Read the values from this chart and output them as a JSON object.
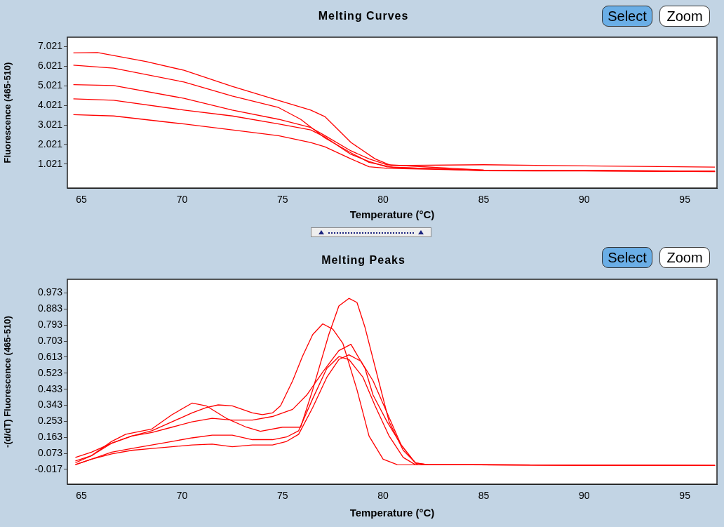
{
  "chart_data": [
    {
      "type": "line",
      "title": "Melting Curves",
      "xlabel": "Temperature (°C)",
      "ylabel": "Fluorescence (465-510)",
      "annotations": [
        "Select",
        "Zoom"
      ],
      "xlim": [
        64.3,
        96.6
      ],
      "ylim": [
        -0.2,
        7.5
      ],
      "xticks": [
        65,
        70,
        75,
        80,
        85,
        90,
        95
      ],
      "yticks": [
        1.021,
        2.021,
        3.021,
        4.021,
        5.021,
        6.021,
        7.021
      ],
      "series": [
        {
          "color": "#ff0000",
          "x": [
            64.6,
            65.8,
            68.2,
            70.1,
            72.5,
            74.8,
            76.4,
            77.1,
            78.4,
            79.6,
            80.4,
            85,
            90,
            96.5
          ],
          "values": [
            6.7,
            6.72,
            6.26,
            5.81,
            4.99,
            4.27,
            3.78,
            3.45,
            2.13,
            1.29,
            0.95,
            0.99,
            0.93,
            0.87
          ]
        },
        {
          "color": "#ff0000",
          "x": [
            64.6,
            66.6,
            70.1,
            72.5,
            74.8,
            75.9,
            77.1,
            78.4,
            79.3,
            80.5,
            85,
            90,
            96.5
          ],
          "values": [
            6.07,
            5.92,
            5.21,
            4.5,
            3.91,
            3.31,
            2.36,
            1.6,
            1.11,
            0.85,
            0.72,
            0.7,
            0.66
          ]
        },
        {
          "color": "#ff0000",
          "x": [
            64.6,
            66.6,
            70.1,
            72.5,
            74.8,
            76.4,
            77.1,
            78.4,
            79.3,
            80.2,
            85,
            90,
            96.5
          ],
          "values": [
            5.08,
            5.03,
            4.38,
            3.78,
            3.31,
            2.89,
            2.48,
            1.7,
            1.29,
            0.99,
            0.72,
            0.7,
            0.65
          ]
        },
        {
          "color": "#ff0000",
          "x": [
            64.6,
            66.6,
            70.1,
            72.5,
            74.8,
            76.4,
            77.1,
            78.4,
            79.3,
            80.2,
            85,
            90,
            96.5
          ],
          "values": [
            4.35,
            4.28,
            3.78,
            3.48,
            3.07,
            2.77,
            2.41,
            1.52,
            1.16,
            0.88,
            0.68,
            0.67,
            0.64
          ]
        },
        {
          "color": "#ff0000",
          "x": [
            64.6,
            66.6,
            70.1,
            72.5,
            74.8,
            76.4,
            77.1,
            78.4,
            79.3,
            80.2,
            85,
            90,
            96.5
          ],
          "values": [
            3.55,
            3.48,
            3.07,
            2.77,
            2.47,
            2.12,
            1.91,
            1.29,
            0.89,
            0.81,
            0.7,
            0.68,
            0.65
          ]
        }
      ]
    },
    {
      "type": "line",
      "title": "Melting Peaks",
      "xlabel": "Temperature (°C)",
      "ylabel": "-(d/dT) Fluorescence (465-510)",
      "annotations": [
        "Select",
        "Zoom"
      ],
      "xlim": [
        64.3,
        96.6
      ],
      "ylim": [
        -0.1,
        1.05
      ],
      "xticks": [
        65,
        70,
        75,
        80,
        85,
        90,
        95
      ],
      "yticks": [
        -0.017,
        0.073,
        0.163,
        0.253,
        0.343,
        0.433,
        0.523,
        0.613,
        0.703,
        0.793,
        0.883,
        0.973
      ],
      "series": [
        {
          "color": "#ff0000",
          "x": [
            64.7,
            65.5,
            66.5,
            67.2,
            68.5,
            69.5,
            70.5,
            71.2,
            72.2,
            73.2,
            73.9,
            75,
            75.9,
            76.5,
            77.3,
            77.8,
            78.3,
            78.7,
            79.1,
            79.8,
            80.3,
            81,
            81.7,
            96.5
          ],
          "values": [
            0.03,
            0.06,
            0.14,
            0.18,
            0.21,
            0.29,
            0.355,
            0.34,
            0.27,
            0.22,
            0.197,
            0.22,
            0.22,
            0.43,
            0.74,
            0.9,
            0.943,
            0.92,
            0.78,
            0.47,
            0.25,
            0.09,
            0.01,
            0.005
          ]
        },
        {
          "color": "#ff0000",
          "x": [
            64.7,
            65.5,
            66.5,
            67.5,
            68.5,
            69.5,
            70.5,
            71.2,
            71.8,
            72.5,
            73.5,
            74,
            74.5,
            74.9,
            75.5,
            76,
            76.5,
            77,
            77.5,
            78,
            78.7,
            79.3,
            80,
            80.7,
            96.5
          ],
          "values": [
            0.05,
            0.08,
            0.13,
            0.17,
            0.2,
            0.25,
            0.3,
            0.33,
            0.345,
            0.34,
            0.3,
            0.29,
            0.3,
            0.34,
            0.48,
            0.62,
            0.74,
            0.8,
            0.77,
            0.69,
            0.43,
            0.17,
            0.04,
            0.01,
            0.005
          ]
        },
        {
          "color": "#ff0000",
          "x": [
            64.7,
            65.5,
            66.5,
            67.5,
            68.5,
            69.5,
            70.5,
            71.5,
            72.5,
            73.5,
            74.5,
            75.5,
            76.2,
            77,
            77.8,
            78.4,
            79.1,
            79.5,
            80.2,
            80.9,
            81.6,
            82.2,
            96.5
          ],
          "values": [
            0.02,
            0.06,
            0.13,
            0.17,
            0.19,
            0.22,
            0.25,
            0.27,
            0.26,
            0.26,
            0.28,
            0.32,
            0.4,
            0.53,
            0.65,
            0.685,
            0.55,
            0.4,
            0.25,
            0.12,
            0.02,
            0.01,
            0.005
          ]
        },
        {
          "color": "#ff0000",
          "x": [
            64.7,
            65.5,
            66.5,
            67.5,
            68.5,
            69.5,
            70.5,
            71.5,
            72.5,
            73.5,
            74.5,
            75.2,
            75.8,
            76.5,
            77.2,
            77.8,
            78.3,
            79,
            79.6,
            80.3,
            81,
            81.6,
            96.5
          ],
          "values": [
            0.01,
            0.04,
            0.08,
            0.1,
            0.12,
            0.14,
            0.16,
            0.175,
            0.175,
            0.15,
            0.15,
            0.165,
            0.2,
            0.38,
            0.55,
            0.616,
            0.6,
            0.5,
            0.34,
            0.17,
            0.05,
            0.01,
            0.005
          ]
        },
        {
          "color": "#ff0000",
          "x": [
            64.7,
            65.5,
            66.5,
            67.5,
            68.5,
            69.5,
            70.5,
            71.5,
            72.5,
            73.5,
            74.5,
            75.2,
            75.8,
            76.5,
            77.2,
            77.8,
            78.3,
            78.9,
            79.5,
            80.2,
            80.9,
            81.6,
            82.2,
            96.5
          ],
          "values": [
            0.01,
            0.04,
            0.07,
            0.09,
            0.1,
            0.11,
            0.12,
            0.125,
            0.11,
            0.12,
            0.12,
            0.14,
            0.18,
            0.33,
            0.5,
            0.6,
            0.626,
            0.59,
            0.48,
            0.3,
            0.12,
            0.02,
            0.01,
            0.005
          ]
        }
      ]
    }
  ]
}
